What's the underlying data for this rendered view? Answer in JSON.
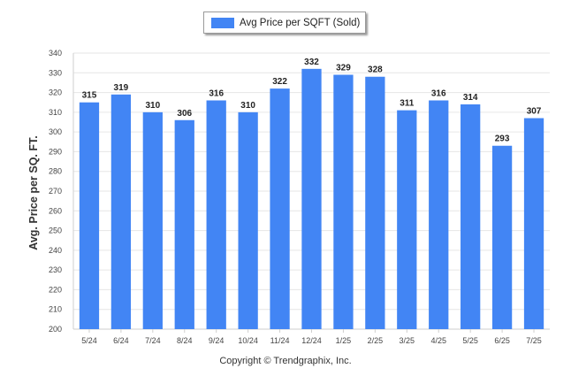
{
  "legend": {
    "label": "Avg Price per SQFT (Sold)"
  },
  "footer": {
    "copyright": "Copyright © Trendgraphix, Inc."
  },
  "chart_data": {
    "type": "bar",
    "ylabel": "Avg. Price per SQ. FT.",
    "xlabel": "",
    "categories": [
      "5/24",
      "6/24",
      "7/24",
      "8/24",
      "9/24",
      "10/24",
      "11/24",
      "12/24",
      "1/25",
      "2/25",
      "3/25",
      "4/25",
      "5/25",
      "6/25",
      "7/25"
    ],
    "series": [
      {
        "name": "Avg Price per SQFT (Sold)",
        "values": [
          315,
          319,
          310,
          306,
          316,
          310,
          322,
          332,
          329,
          328,
          311,
          316,
          314,
          293,
          307
        ],
        "color": "#4285f4"
      }
    ],
    "ylim": [
      200,
      340
    ],
    "yticks": [
      200,
      210,
      220,
      230,
      240,
      250,
      260,
      270,
      280,
      290,
      300,
      310,
      320,
      330,
      340
    ],
    "grid": true,
    "legend_position": "top-center",
    "data_labels": true
  }
}
